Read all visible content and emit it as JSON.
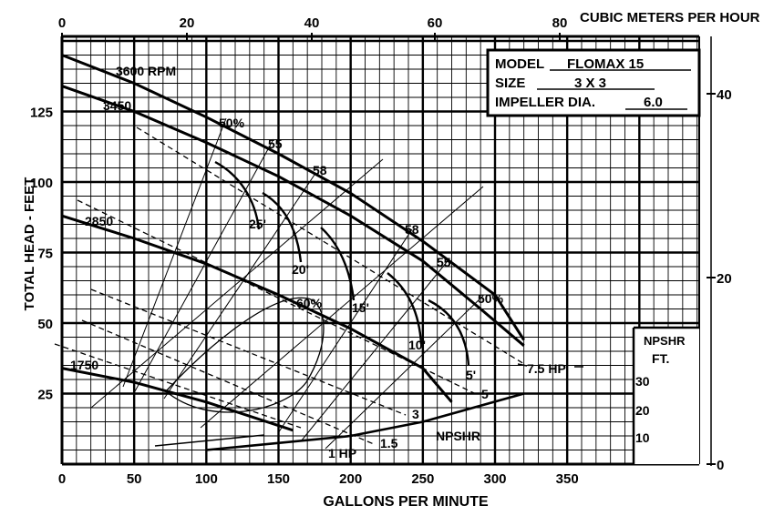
{
  "chart_data": {
    "type": "line",
    "title": "",
    "xlabel": "GALLONS PER MINUTE",
    "ylabel": "TOTAL HEAD - FEET",
    "x2label": "CUBIC METERS PER HOUR",
    "xlim": [
      0,
      440
    ],
    "ylim": [
      0,
      150
    ],
    "x_ticks": [
      0,
      50,
      100,
      150,
      200,
      250,
      300,
      350
    ],
    "y_ticks": [
      25,
      50,
      75,
      100,
      125
    ],
    "x2_ticks": [
      0,
      20,
      40,
      60,
      80
    ],
    "y2_ticks": [
      0,
      20,
      40
    ],
    "grid": true,
    "model_box": {
      "model_label": "MODEL",
      "model_value": "FLOMAX 15",
      "size_label": "SIZE",
      "size_value": "3 X 3",
      "impeller_label": "IMPELLER DIA.",
      "impeller_value": "6.0"
    },
    "npshr_axis": {
      "title_line1": "NPSHR",
      "title_line2": "FT.",
      "ticks": [
        "30",
        "20",
        "10"
      ]
    },
    "series": [
      {
        "name": "3600 RPM",
        "points": [
          [
            0,
            145
          ],
          [
            50,
            135
          ],
          [
            100,
            123
          ],
          [
            150,
            110
          ],
          [
            200,
            96
          ],
          [
            250,
            79
          ],
          [
            300,
            60
          ],
          [
            320,
            44
          ]
        ]
      },
      {
        "name": "3450",
        "points": [
          [
            0,
            134
          ],
          [
            50,
            125
          ],
          [
            100,
            114
          ],
          [
            150,
            102
          ],
          [
            200,
            88
          ],
          [
            250,
            72
          ],
          [
            290,
            55
          ],
          [
            320,
            42
          ]
        ]
      },
      {
        "name": "2850",
        "points": [
          [
            0,
            88
          ],
          [
            50,
            80
          ],
          [
            100,
            71
          ],
          [
            150,
            60
          ],
          [
            200,
            48
          ],
          [
            250,
            34
          ],
          [
            270,
            22
          ]
        ]
      },
      {
        "name": "1750",
        "points": [
          [
            0,
            34
          ],
          [
            50,
            29
          ],
          [
            100,
            22
          ],
          [
            160,
            12
          ]
        ]
      },
      {
        "name": "NPSHR",
        "points": [
          [
            100,
            5
          ],
          [
            200,
            10
          ],
          [
            250,
            15
          ],
          [
            320,
            25
          ]
        ]
      }
    ],
    "efficiency_labels": [
      "50%",
      "55",
      "58",
      "60%",
      "58",
      "55",
      "50%"
    ],
    "npshr_labels": [
      "25'",
      "20'",
      "15'",
      "10'",
      "5'"
    ],
    "hp_labels": [
      "7.5 HP",
      "5",
      "3",
      "1.5",
      "1 HP"
    ]
  }
}
